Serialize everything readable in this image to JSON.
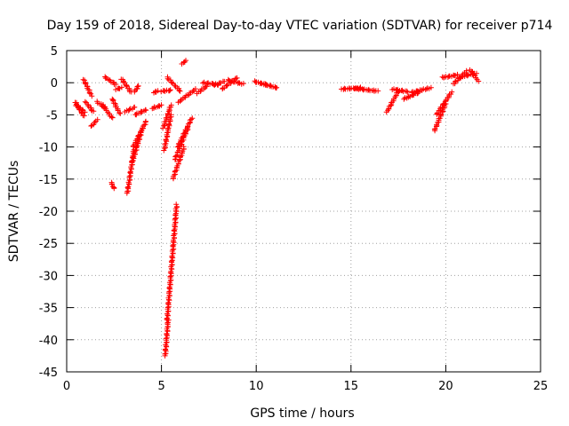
{
  "chart_data": {
    "type": "scatter",
    "title": "Day 159 of 2018, Sidereal Day-to-day VTEC variation (SDTVAR) for receiver p714",
    "xlabel": "GPS time / hours",
    "ylabel": "SDTVAR / TECUs",
    "xlim": [
      0,
      25
    ],
    "ylim": [
      -45,
      5
    ],
    "xticks": [
      0,
      5,
      10,
      15,
      20,
      25
    ],
    "yticks": [
      5,
      0,
      -5,
      -10,
      -15,
      -20,
      -25,
      -30,
      -35,
      -40,
      -45
    ],
    "grid": true,
    "marker": "+",
    "marker_color": "#ff0000",
    "segments": [
      {
        "x": [
          0.45,
          0.9
        ],
        "y": [
          -3.0,
          -5.2
        ]
      },
      {
        "x": [
          0.5,
          0.95
        ],
        "y": [
          -3.5,
          -4.5
        ]
      },
      {
        "x": [
          0.9,
          1.3
        ],
        "y": [
          0.5,
          -2.0
        ]
      },
      {
        "x": [
          1.0,
          1.4
        ],
        "y": [
          -3.0,
          -4.5
        ]
      },
      {
        "x": [
          1.3,
          1.6
        ],
        "y": [
          -6.8,
          -5.8
        ]
      },
      {
        "x": [
          1.6,
          2.0
        ],
        "y": [
          -3.0,
          -3.8
        ]
      },
      {
        "x": [
          1.9,
          2.4
        ],
        "y": [
          -3.5,
          -5.5
        ]
      },
      {
        "x": [
          2.0,
          2.6
        ],
        "y": [
          0.9,
          -0.3
        ]
      },
      {
        "x": [
          2.35,
          2.5
        ],
        "y": [
          -15.5,
          -16.5
        ]
      },
      {
        "x": [
          2.4,
          2.8
        ],
        "y": [
          -2.5,
          -4.8
        ]
      },
      {
        "x": [
          2.6,
          2.9
        ],
        "y": [
          -1.0,
          -0.8
        ]
      },
      {
        "x": [
          2.9,
          3.4
        ],
        "y": [
          0.6,
          -1.5
        ]
      },
      {
        "x": [
          3.1,
          3.6
        ],
        "y": [
          -4.5,
          -3.8
        ]
      },
      {
        "x": [
          3.2,
          3.55
        ],
        "y": [
          -17.2,
          -10.5
        ]
      },
      {
        "x": [
          3.45,
          4.0
        ],
        "y": [
          -12.5,
          -7.0
        ]
      },
      {
        "x": [
          3.5,
          4.2
        ],
        "y": [
          -10.0,
          -6.0
        ]
      },
      {
        "x": [
          3.55,
          3.8
        ],
        "y": [
          -1.5,
          -0.5
        ]
      },
      {
        "x": [
          3.6,
          4.2
        ],
        "y": [
          -5.0,
          -4.2
        ]
      },
      {
        "x": [
          4.5,
          5.0
        ],
        "y": [
          -4.0,
          -3.5
        ]
      },
      {
        "x": [
          4.6,
          4.8
        ],
        "y": [
          -1.5,
          -1.3
        ]
      },
      {
        "x": [
          5.0,
          5.5
        ],
        "y": [
          -1.3,
          -1.2
        ]
      },
      {
        "x": [
          5.1,
          5.5
        ],
        "y": [
          -7.0,
          -3.5
        ]
      },
      {
        "x": [
          5.15,
          5.5
        ],
        "y": [
          -10.5,
          -5.0
        ]
      },
      {
        "x": [
          5.2,
          5.35
        ],
        "y": [
          -42.5,
          -37.0
        ]
      },
      {
        "x": [
          5.3,
          5.8
        ],
        "y": [
          -37.0,
          -19.0
        ]
      },
      {
        "x": [
          5.3,
          6.0
        ],
        "y": [
          0.8,
          -1.3
        ]
      },
      {
        "x": [
          5.6,
          6.2
        ],
        "y": [
          -15.0,
          -10.0
        ]
      },
      {
        "x": [
          5.7,
          6.4
        ],
        "y": [
          -12.0,
          -7.0
        ]
      },
      {
        "x": [
          5.85,
          6.6
        ],
        "y": [
          -10.0,
          -5.5
        ]
      },
      {
        "x": [
          5.9,
          6.8
        ],
        "y": [
          -3.0,
          -1.0
        ]
      },
      {
        "x": [
          6.1,
          6.3
        ],
        "y": [
          3.0,
          3.4
        ]
      },
      {
        "x": [
          6.9,
          7.4
        ],
        "y": [
          -1.6,
          -0.5
        ]
      },
      {
        "x": [
          7.2,
          8.0
        ],
        "y": [
          0.0,
          -0.3
        ]
      },
      {
        "x": [
          7.8,
          8.3
        ],
        "y": [
          -0.4,
          0.2
        ]
      },
      {
        "x": [
          8.2,
          9.0
        ],
        "y": [
          -1.0,
          0.8
        ]
      },
      {
        "x": [
          8.5,
          9.3
        ],
        "y": [
          0.4,
          -0.2
        ]
      },
      {
        "x": [
          9.9,
          10.6
        ],
        "y": [
          0.2,
          -0.4
        ]
      },
      {
        "x": [
          10.4,
          11.1
        ],
        "y": [
          -0.2,
          -0.8
        ]
      },
      {
        "x": [
          14.5,
          15.5
        ],
        "y": [
          -1.0,
          -0.8
        ]
      },
      {
        "x": [
          15.2,
          16.4
        ],
        "y": [
          -0.9,
          -1.3
        ]
      },
      {
        "x": [
          16.9,
          17.5
        ],
        "y": [
          -4.5,
          -1.3
        ]
      },
      {
        "x": [
          17.2,
          18.0
        ],
        "y": [
          -1.0,
          -1.4
        ]
      },
      {
        "x": [
          17.8,
          18.6
        ],
        "y": [
          -2.5,
          -1.5
        ]
      },
      {
        "x": [
          18.2,
          19.2
        ],
        "y": [
          -1.5,
          -0.8
        ]
      },
      {
        "x": [
          19.4,
          20.0
        ],
        "y": [
          -7.5,
          -3.2
        ]
      },
      {
        "x": [
          19.5,
          20.3
        ],
        "y": [
          -5.0,
          -1.5
        ]
      },
      {
        "x": [
          19.8,
          20.6
        ],
        "y": [
          0.8,
          1.2
        ]
      },
      {
        "x": [
          20.4,
          21.1
        ],
        "y": [
          -0.2,
          1.8
        ]
      },
      {
        "x": [
          20.7,
          21.6
        ],
        "y": [
          0.8,
          1.5
        ]
      },
      {
        "x": [
          21.3,
          21.7
        ],
        "y": [
          2.0,
          0.3
        ]
      }
    ]
  }
}
